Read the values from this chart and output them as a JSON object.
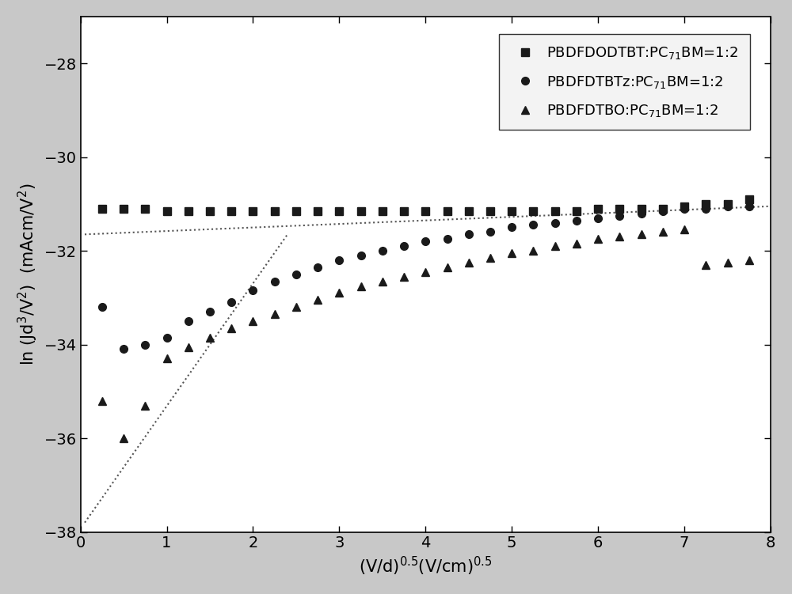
{
  "xlabel": "(V/d)$^{0.5}$(V/cm)$^{0.5}$",
  "ylabel": "ln (Jd$^3$/V$^2$)  (mAcm/V$^2$)",
  "xlim": [
    0,
    8
  ],
  "ylim": [
    -38,
    -27
  ],
  "yticks": [
    -38,
    -36,
    -34,
    -32,
    -30,
    -28
  ],
  "xticks": [
    0,
    1,
    2,
    3,
    4,
    5,
    6,
    7,
    8
  ],
  "legend1": "PBDFDODTBT:PC$_{71}$BM=1:2",
  "legend2": "PBDFDTBTz:PC$_{71}$BM=1:2",
  "legend3": "PBDFDTBO:PC$_{71}$BM=1:2",
  "series1_x": [
    0.25,
    0.5,
    0.75,
    1.0,
    1.25,
    1.5,
    1.75,
    2.0,
    2.25,
    2.5,
    2.75,
    3.0,
    3.25,
    3.5,
    3.75,
    4.0,
    4.25,
    4.5,
    4.75,
    5.0,
    5.25,
    5.5,
    5.75,
    6.0,
    6.25,
    6.5,
    6.75,
    7.0,
    7.25,
    7.5,
    7.75
  ],
  "series1_y": [
    -31.1,
    -31.1,
    -31.1,
    -31.15,
    -31.15,
    -31.15,
    -31.15,
    -31.15,
    -31.15,
    -31.15,
    -31.15,
    -31.15,
    -31.15,
    -31.15,
    -31.15,
    -31.15,
    -31.15,
    -31.15,
    -31.15,
    -31.15,
    -31.15,
    -31.15,
    -31.15,
    -31.1,
    -31.1,
    -31.1,
    -31.1,
    -31.05,
    -31.0,
    -31.0,
    -30.9
  ],
  "series2_x": [
    0.25,
    0.5,
    0.75,
    1.0,
    1.25,
    1.5,
    1.75,
    2.0,
    2.25,
    2.5,
    2.75,
    3.0,
    3.25,
    3.5,
    3.75,
    4.0,
    4.25,
    4.5,
    4.75,
    5.0,
    5.25,
    5.5,
    5.75,
    6.0,
    6.25,
    6.5,
    6.75,
    7.0,
    7.25,
    7.5,
    7.75
  ],
  "series2_y": [
    -33.2,
    -34.1,
    -34.0,
    -33.85,
    -33.5,
    -33.3,
    -33.1,
    -32.85,
    -32.65,
    -32.5,
    -32.35,
    -32.2,
    -32.1,
    -32.0,
    -31.9,
    -31.8,
    -31.75,
    -31.65,
    -31.6,
    -31.5,
    -31.45,
    -31.4,
    -31.35,
    -31.3,
    -31.25,
    -31.2,
    -31.15,
    -31.1,
    -31.1,
    -31.05,
    -31.05
  ],
  "series3_x": [
    0.25,
    0.5,
    0.75,
    1.0,
    1.25,
    1.5,
    1.75,
    2.0,
    2.25,
    2.5,
    2.75,
    3.0,
    3.25,
    3.5,
    3.75,
    4.0,
    4.25,
    4.5,
    4.75,
    5.0,
    5.25,
    5.5,
    5.75,
    6.0,
    6.25,
    6.5,
    6.75,
    7.0,
    7.25,
    7.5,
    7.75
  ],
  "series3_y": [
    -35.2,
    -36.0,
    -35.3,
    -34.3,
    -34.05,
    -33.85,
    -33.65,
    -33.5,
    -33.35,
    -33.2,
    -33.05,
    -32.9,
    -32.75,
    -32.65,
    -32.55,
    -32.45,
    -32.35,
    -32.25,
    -32.15,
    -32.05,
    -32.0,
    -31.9,
    -31.85,
    -31.75,
    -31.7,
    -31.65,
    -31.6,
    -31.55,
    -32.3,
    -32.25,
    -32.2
  ],
  "fit1_x": [
    0.05,
    8.0
  ],
  "fit1_y": [
    -31.65,
    -31.05
  ],
  "fit2_x": [
    0.05,
    2.4
  ],
  "fit2_y": [
    -37.8,
    -31.65
  ],
  "background_color": "#c8c8c8",
  "plot_bg": "#ffffff",
  "marker_color": "#1a1a1a",
  "fit_line_color": "#555555"
}
